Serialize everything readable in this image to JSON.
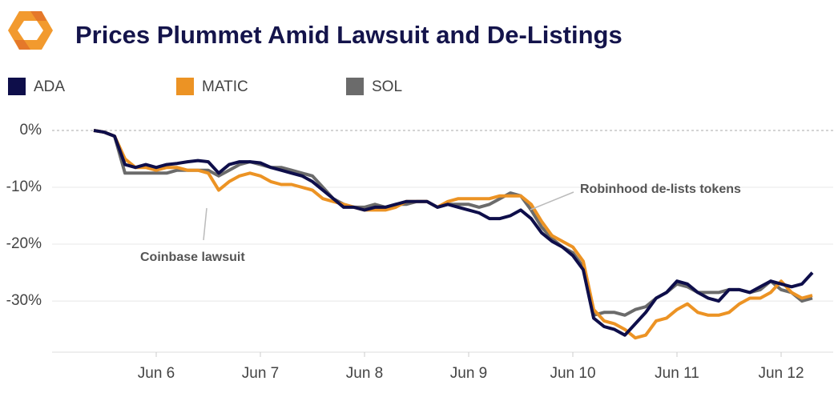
{
  "chart_data": {
    "type": "line",
    "title": "Prices Plummet Amid Lawsuit and De-Listings",
    "x": [
      5.4,
      5.5,
      5.6,
      5.7,
      5.8,
      5.9,
      6.0,
      6.1,
      6.2,
      6.3,
      6.4,
      6.5,
      6.6,
      6.7,
      6.8,
      6.9,
      7.0,
      7.1,
      7.2,
      7.3,
      7.4,
      7.5,
      7.6,
      7.7,
      7.8,
      7.9,
      8.0,
      8.1,
      8.2,
      8.3,
      8.4,
      8.5,
      8.6,
      8.7,
      8.8,
      8.9,
      9.0,
      9.1,
      9.2,
      9.3,
      9.4,
      9.5,
      9.6,
      9.7,
      9.8,
      9.9,
      10.0,
      10.1,
      10.2,
      10.3,
      10.4,
      10.5,
      10.6,
      10.7,
      10.8,
      10.9,
      11.0,
      11.1,
      11.2,
      11.3,
      11.4,
      11.5,
      11.6,
      11.7,
      11.8,
      11.9,
      12.0,
      12.1,
      12.2,
      12.3
    ],
    "series": [
      {
        "name": "ADA",
        "color": "#0e0e4a",
        "values": [
          0,
          -0.3,
          -1,
          -6,
          -6.5,
          -6,
          -6.5,
          -6,
          -5.8,
          -5.5,
          -5.3,
          -5.5,
          -7.5,
          -6,
          -5.5,
          -5.5,
          -5.7,
          -6.5,
          -7,
          -7.5,
          -8,
          -9,
          -10.5,
          -12,
          -13.5,
          -13.5,
          -14,
          -13.5,
          -13.5,
          -13,
          -12.5,
          -12.5,
          -12.5,
          -13.5,
          -13,
          -13.5,
          -14,
          -14.5,
          -15.5,
          -15.5,
          -15,
          -14,
          -15.5,
          -18,
          -19.5,
          -20.5,
          -22,
          -24.5,
          -33,
          -34.5,
          -35,
          -36,
          -34,
          -32,
          -29.5,
          -28.5,
          -26.5,
          -27,
          -28.5,
          -29.5,
          -30,
          -28,
          -28,
          -28.5,
          -27.5,
          -26.5,
          -27,
          -27.5,
          -27,
          -25
        ]
      },
      {
        "name": "MATIC",
        "color": "#ec9324",
        "values": [
          0,
          -0.3,
          -1,
          -5,
          -6.5,
          -6.5,
          -7,
          -6.5,
          -6.5,
          -7,
          -7,
          -7.5,
          -10.5,
          -9,
          -8,
          -7.5,
          -8,
          -9,
          -9.5,
          -9.5,
          -10,
          -10.5,
          -12,
          -12.5,
          -13,
          -13.5,
          -14,
          -14,
          -14,
          -13.5,
          -12.5,
          -12.5,
          -12.5,
          -13.5,
          -12.5,
          -12,
          -12,
          -12,
          -12,
          -11.5,
          -11.5,
          -11.5,
          -13,
          -16,
          -18.5,
          -19.5,
          -20.5,
          -23,
          -31.5,
          -33.5,
          -34,
          -35,
          -36.5,
          -36,
          -33.5,
          -33,
          -31.5,
          -30.5,
          -32,
          -32.5,
          -32.5,
          -32,
          -30.5,
          -29.5,
          -29.5,
          -28.5,
          -26.5,
          -28.5,
          -29.5,
          -29
        ]
      },
      {
        "name": "SOL",
        "color": "#6b6b6b",
        "values": [
          0,
          -0.3,
          -1,
          -7.5,
          -7.5,
          -7.5,
          -7.5,
          -7.5,
          -7,
          -7,
          -7,
          -7,
          -8,
          -7,
          -6,
          -5.5,
          -6,
          -6.5,
          -6.5,
          -7,
          -7.5,
          -8,
          -10,
          -12,
          -13,
          -13.5,
          -13.5,
          -13,
          -13.5,
          -13,
          -13,
          -12.5,
          -12.5,
          -13.5,
          -13,
          -13,
          -13,
          -13.5,
          -13,
          -12,
          -11,
          -11.5,
          -14,
          -17,
          -19,
          -20.5,
          -21.5,
          -24,
          -32.5,
          -32,
          -32,
          -32.5,
          -31.5,
          -31,
          -29.5,
          -28.5,
          -27,
          -27.5,
          -28.5,
          -28.5,
          -28.5,
          -28,
          -28,
          -28.5,
          -28,
          -26.5,
          -28,
          -28.5,
          -30,
          -29.5
        ]
      }
    ],
    "xlim": [
      5.0,
      12.5
    ],
    "xticks": [
      {
        "value": 6,
        "label": "Jun 6"
      },
      {
        "value": 7,
        "label": "Jun 7"
      },
      {
        "value": 8,
        "label": "Jun 8"
      },
      {
        "value": 9,
        "label": "Jun 9"
      },
      {
        "value": 10,
        "label": "Jun 10"
      },
      {
        "value": 11,
        "label": "Jun 11"
      },
      {
        "value": 12,
        "label": "Jun 12"
      }
    ],
    "ylim": [
      -39,
      2
    ],
    "yticks": [
      {
        "value": 0,
        "label": "0%"
      },
      {
        "value": -10,
        "label": "-10%"
      },
      {
        "value": -20,
        "label": "-20%"
      },
      {
        "value": -30,
        "label": "-30%"
      }
    ],
    "grid": true,
    "annotations": [
      "Coinbase lawsuit",
      "Robinhood de-lists tokens"
    ]
  }
}
